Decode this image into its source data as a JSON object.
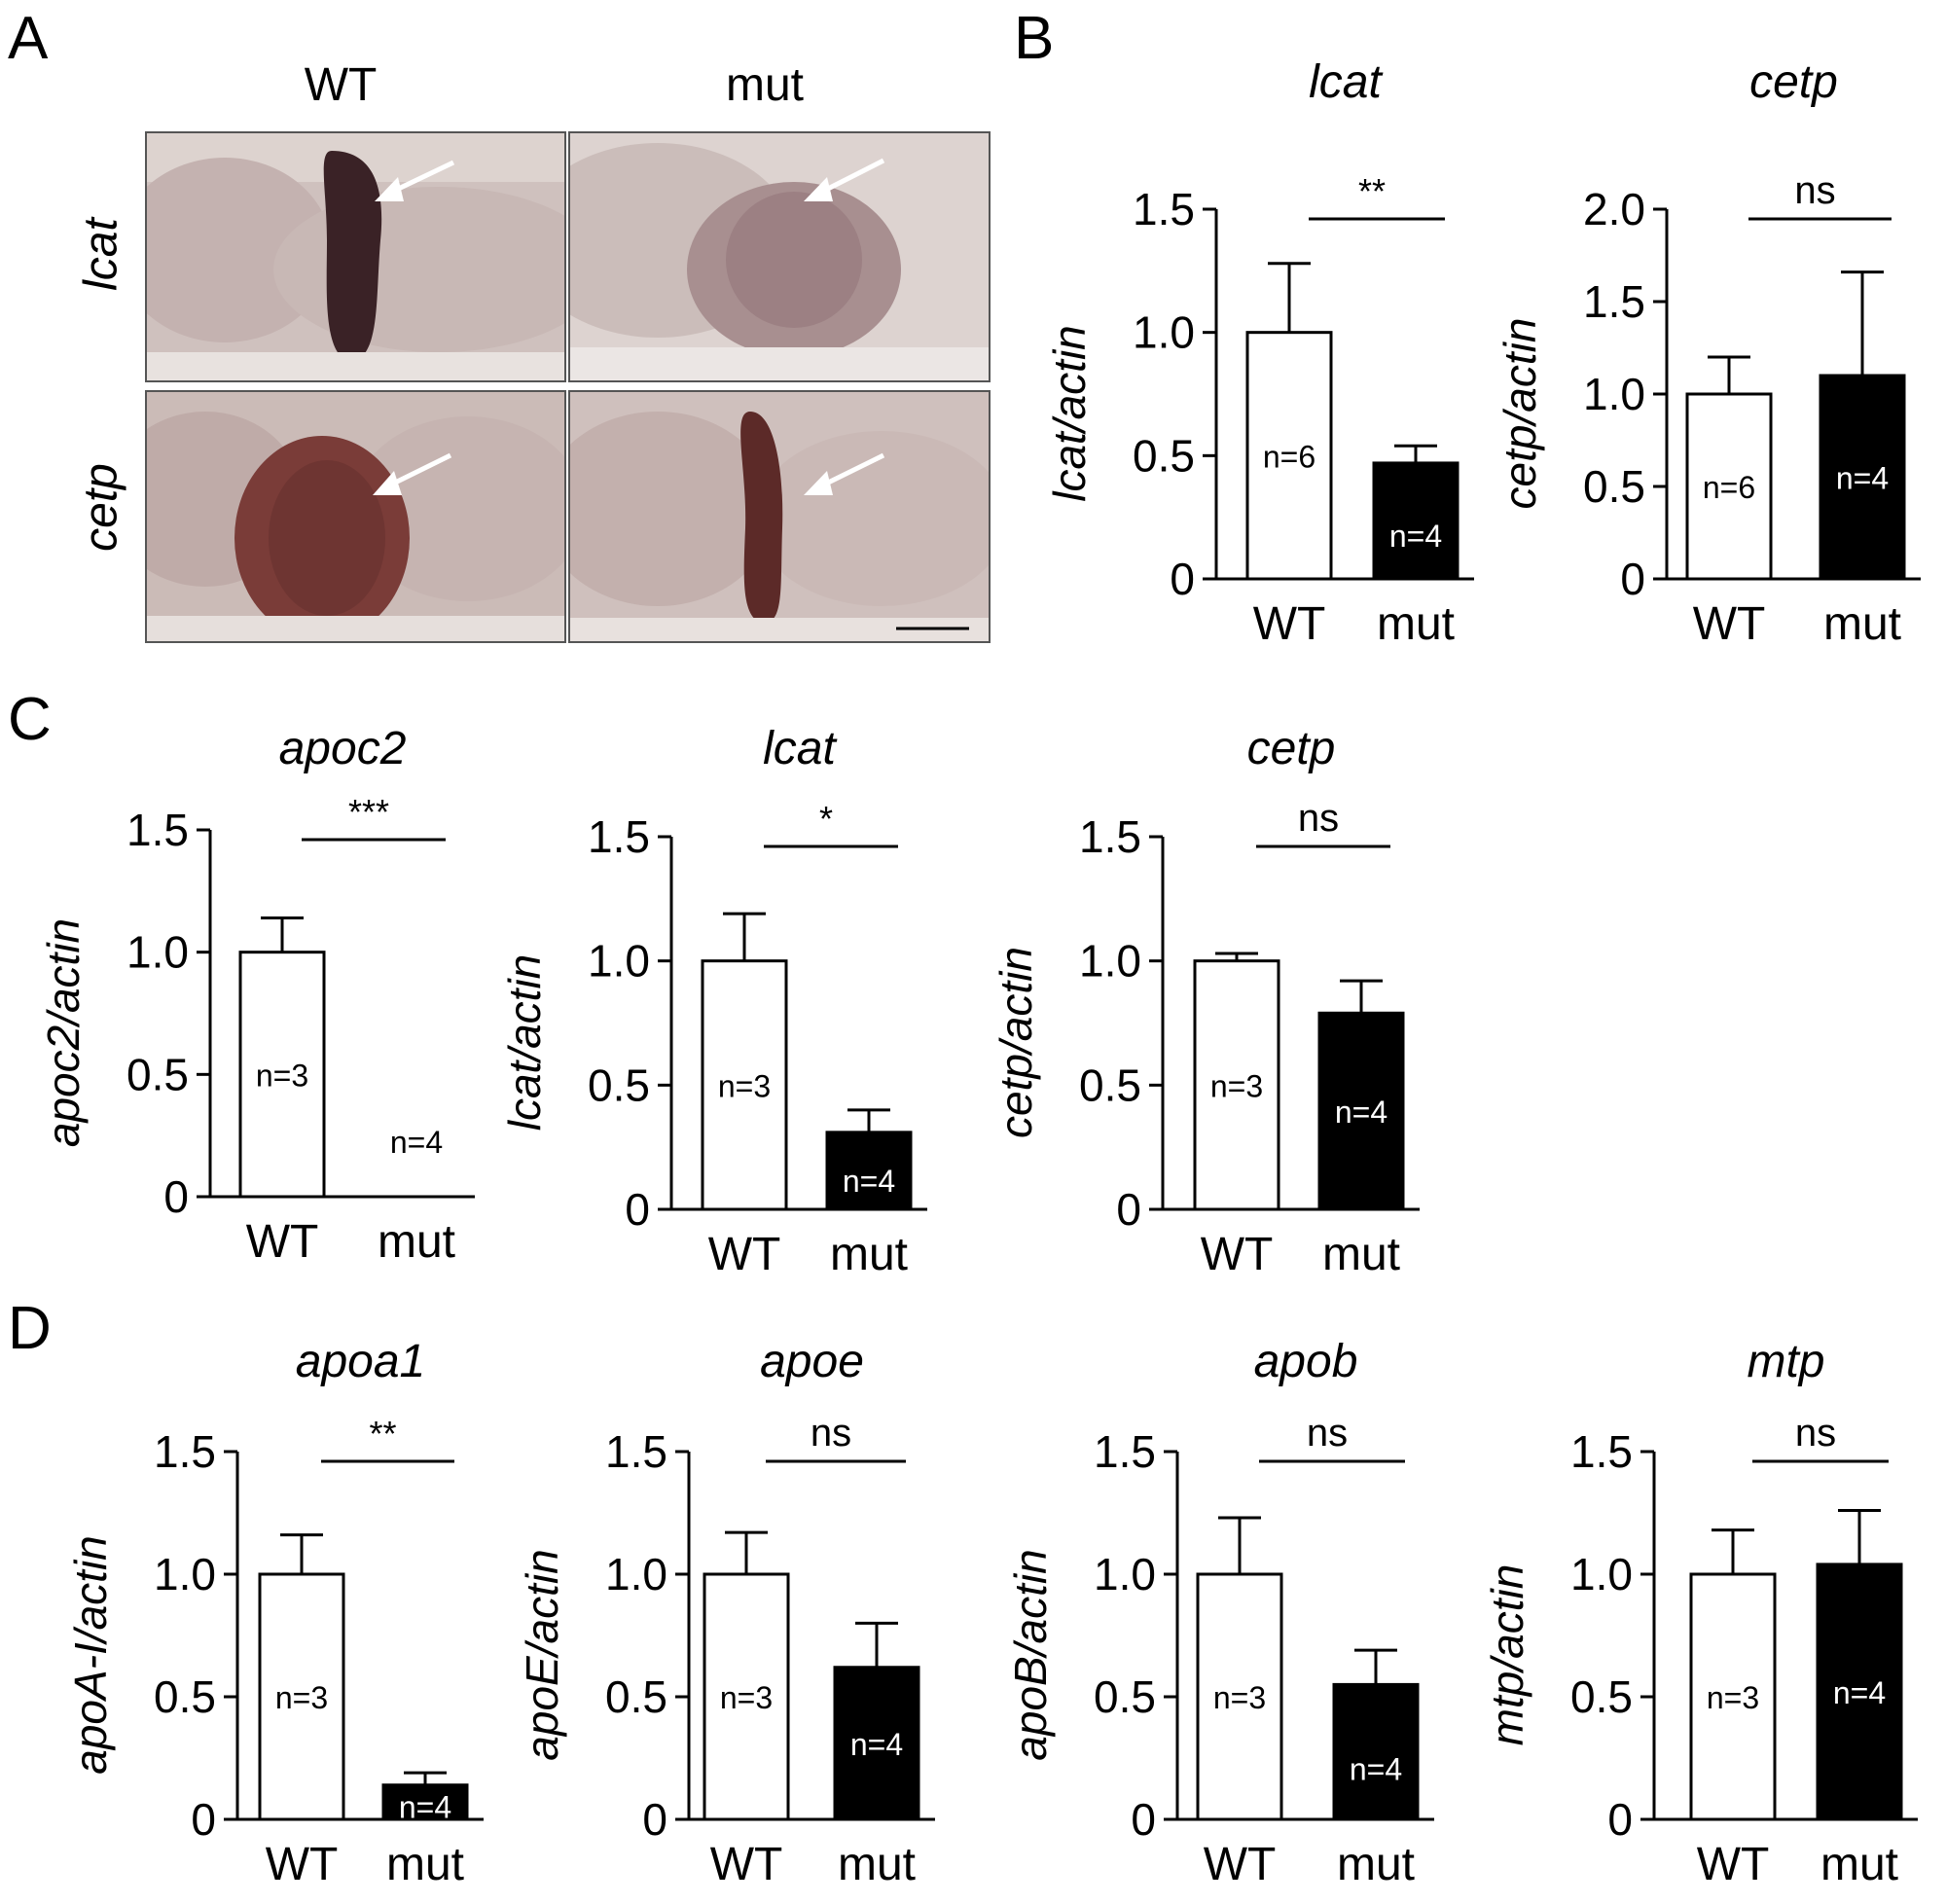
{
  "panels": {
    "A": "A",
    "B": "B",
    "C": "C",
    "D": "D"
  },
  "panel_a": {
    "columns": [
      "WT",
      "mut"
    ],
    "rows": [
      "lcat",
      "cetp"
    ],
    "colors": {
      "tissue": "#c9b7b3",
      "stain_dark": "#3a2226",
      "stain_cetp": "#6e3532",
      "arrow": "#ffffff"
    }
  },
  "chart_data": [
    {
      "id": "B1",
      "type": "bar",
      "title": "lcat",
      "ylabel": "lcat/actin",
      "ylim": [
        0,
        1.5
      ],
      "yticks": [
        "0",
        "0.5",
        "1.0",
        "1.5"
      ],
      "categories": [
        "WT",
        "mut"
      ],
      "values": [
        1.0,
        0.47
      ],
      "errors": [
        0.28,
        0.07
      ],
      "n": [
        "n=6",
        "n=4"
      ],
      "sig": "**"
    },
    {
      "id": "B2",
      "type": "bar",
      "title": "cetp",
      "ylabel": "cetp/actin",
      "ylim": [
        0,
        2.0
      ],
      "yticks": [
        "0",
        "0.5",
        "1.0",
        "1.5",
        "2.0"
      ],
      "categories": [
        "WT",
        "mut"
      ],
      "values": [
        1.0,
        1.1
      ],
      "errors": [
        0.2,
        0.56
      ],
      "n": [
        "n=6",
        "n=4"
      ],
      "sig": "ns"
    },
    {
      "id": "C1",
      "type": "bar",
      "title": "apoc2",
      "ylabel": "apoc2/actin",
      "ylim": [
        0,
        1.5
      ],
      "yticks": [
        "0",
        "0.5",
        "1.0",
        "1.5"
      ],
      "categories": [
        "WT",
        "mut"
      ],
      "values": [
        1.0,
        0.0
      ],
      "errors": [
        0.14,
        0.0
      ],
      "n": [
        "n=3",
        "n=4"
      ],
      "sig": "***"
    },
    {
      "id": "C2",
      "type": "bar",
      "title": "lcat",
      "ylabel": "lcat/actin",
      "ylim": [
        0,
        1.5
      ],
      "yticks": [
        "0",
        "0.5",
        "1.0",
        "1.5"
      ],
      "categories": [
        "WT",
        "mut"
      ],
      "values": [
        1.0,
        0.31
      ],
      "errors": [
        0.19,
        0.09
      ],
      "n": [
        "n=3",
        "n=4"
      ],
      "sig": "*"
    },
    {
      "id": "C3",
      "type": "bar",
      "title": "cetp",
      "ylabel": "cetp/actin",
      "ylim": [
        0,
        1.5
      ],
      "yticks": [
        "0",
        "0.5",
        "1.0",
        "1.5"
      ],
      "categories": [
        "WT",
        "mut"
      ],
      "values": [
        1.0,
        0.79
      ],
      "errors": [
        0.03,
        0.13
      ],
      "n": [
        "n=3",
        "n=4"
      ],
      "sig": "ns"
    },
    {
      "id": "D1",
      "type": "bar",
      "title": "apoa1",
      "ylabel": "apoA-I/actin",
      "ylim": [
        0,
        1.5
      ],
      "yticks": [
        "0",
        "0.5",
        "1.0",
        "1.5"
      ],
      "categories": [
        "WT",
        "mut"
      ],
      "values": [
        1.0,
        0.14
      ],
      "errors": [
        0.16,
        0.05
      ],
      "n": [
        "n=3",
        "n=4"
      ],
      "sig": "**"
    },
    {
      "id": "D2",
      "type": "bar",
      "title": "apoe",
      "ylabel": "apoE/actin",
      "ylim": [
        0,
        1.5
      ],
      "yticks": [
        "0",
        "0.5",
        "1.0",
        "1.5"
      ],
      "categories": [
        "WT",
        "mut"
      ],
      "values": [
        1.0,
        0.62
      ],
      "errors": [
        0.17,
        0.18
      ],
      "n": [
        "n=3",
        "n=4"
      ],
      "sig": "ns"
    },
    {
      "id": "D3",
      "type": "bar",
      "title": "apob",
      "ylabel": "apoB/actin",
      "ylim": [
        0,
        1.5
      ],
      "yticks": [
        "0",
        "0.5",
        "1.0",
        "1.5"
      ],
      "categories": [
        "WT",
        "mut"
      ],
      "values": [
        1.0,
        0.55
      ],
      "errors": [
        0.23,
        0.14
      ],
      "n": [
        "n=3",
        "n=4"
      ],
      "sig": "ns"
    },
    {
      "id": "D4",
      "type": "bar",
      "title": "mtp",
      "ylabel": "mtp/actin",
      "ylim": [
        0,
        1.5
      ],
      "yticks": [
        "0",
        "0.5",
        "1.0",
        "1.5"
      ],
      "categories": [
        "WT",
        "mut"
      ],
      "values": [
        1.0,
        1.04
      ],
      "errors": [
        0.18,
        0.22
      ],
      "n": [
        "n=3",
        "n=4"
      ],
      "sig": "ns"
    }
  ]
}
